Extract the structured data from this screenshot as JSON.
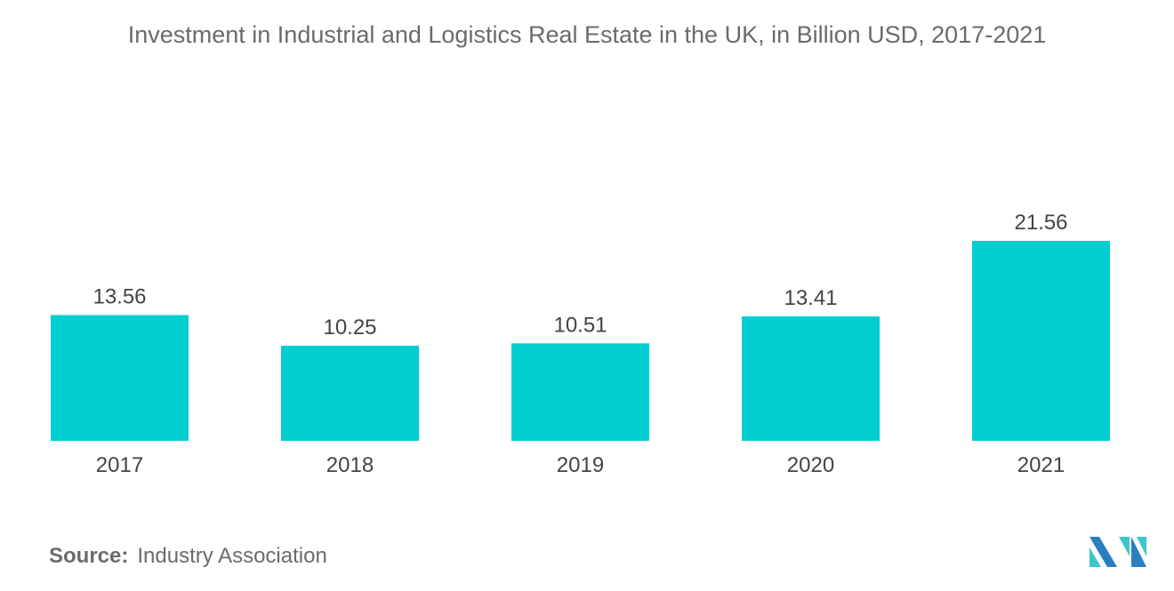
{
  "chart_data": {
    "type": "bar",
    "title": "Investment in Industrial and Logistics Real Estate in the UK, in Billion USD, 2017-2021",
    "categories": [
      "2017",
      "2018",
      "2019",
      "2020",
      "2021"
    ],
    "values": [
      13.56,
      10.25,
      10.51,
      13.41,
      21.56
    ],
    "value_labels": [
      "13.56",
      "10.25",
      "10.51",
      "13.41",
      "21.56"
    ],
    "xlabel": "",
    "ylabel": "",
    "ylim": [
      0,
      21.56
    ],
    "grid": false,
    "bar_color": "#00CED1"
  },
  "source": {
    "label": "Source:",
    "text": "Industry Association"
  },
  "logo": {
    "colors": [
      "#2A7FC1",
      "#3CC6CB"
    ]
  }
}
